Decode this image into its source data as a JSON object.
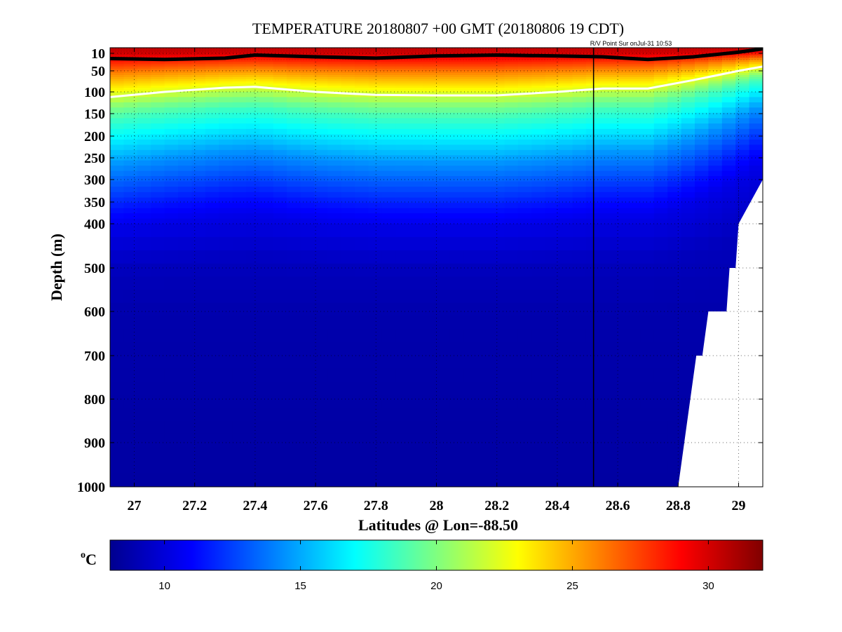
{
  "title": "TEMPERATURE 20180807 +00 GMT (20180806 19 CDT)",
  "subtitle": "R/V Point Sur onJul-31 10:53",
  "chart_data": {
    "type": "heatmap",
    "xlabel": "Latitudes @ Lon=-88.50",
    "ylabel": "Depth (m)",
    "xlim": [
      26.92,
      29.08
    ],
    "ylim": [
      1000,
      0
    ],
    "x_ticks": [
      "27",
      "27.2",
      "27.4",
      "27.6",
      "27.8",
      "28",
      "28.2",
      "28.4",
      "28.6",
      "28.8",
      "29"
    ],
    "y_ticks": [
      "10",
      "50",
      "100",
      "150",
      "200",
      "250",
      "300",
      "350",
      "400",
      "500",
      "600",
      "700",
      "800",
      "900",
      "1000"
    ],
    "grid": true,
    "colorbar": {
      "label": "oC",
      "label_base": "C",
      "label_super": "o",
      "range": [
        8,
        32
      ],
      "ticks": [
        "10",
        "15",
        "20",
        "25",
        "30"
      ],
      "colormap": "jet"
    },
    "ship_track_latitude": 28.52,
    "contours": [
      {
        "color": "#000000",
        "x": [
          26.92,
          27.1,
          27.3,
          27.4,
          27.6,
          27.8,
          28.0,
          28.2,
          28.4,
          28.55,
          28.7,
          28.85,
          29.0,
          29.08
        ],
        "depth": [
          22,
          24,
          21,
          14,
          18,
          21,
          16,
          14,
          16,
          18,
          24,
          18,
          8,
          2
        ]
      },
      {
        "color": "#ffffff",
        "x": [
          26.92,
          27.1,
          27.3,
          27.4,
          27.6,
          27.8,
          28.0,
          28.2,
          28.4,
          28.55,
          28.7,
          28.85,
          29.0,
          29.08
        ],
        "depth": [
          112,
          100,
          90,
          88,
          100,
          107,
          108,
          108,
          100,
          92,
          92,
          72,
          50,
          40
        ]
      }
    ],
    "bathymetry_mask": {
      "x": [
        28.8,
        28.84,
        28.86,
        28.88,
        28.89,
        28.9,
        28.96,
        28.97,
        28.99,
        29.0,
        29.08
      ],
      "depth": [
        1000,
        800,
        700,
        700,
        650,
        600,
        600,
        500,
        500,
        400,
        300
      ]
    },
    "temperature_profile": {
      "depth": [
        0,
        10,
        30,
        50,
        75,
        100,
        125,
        150,
        200,
        250,
        300,
        350,
        400,
        500,
        600,
        1000
      ],
      "value": [
        30.5,
        30,
        28,
        26,
        24,
        22,
        20,
        18.5,
        16.5,
        14.5,
        13,
        11.5,
        10.3,
        9.2,
        8.8,
        8.5
      ]
    }
  }
}
